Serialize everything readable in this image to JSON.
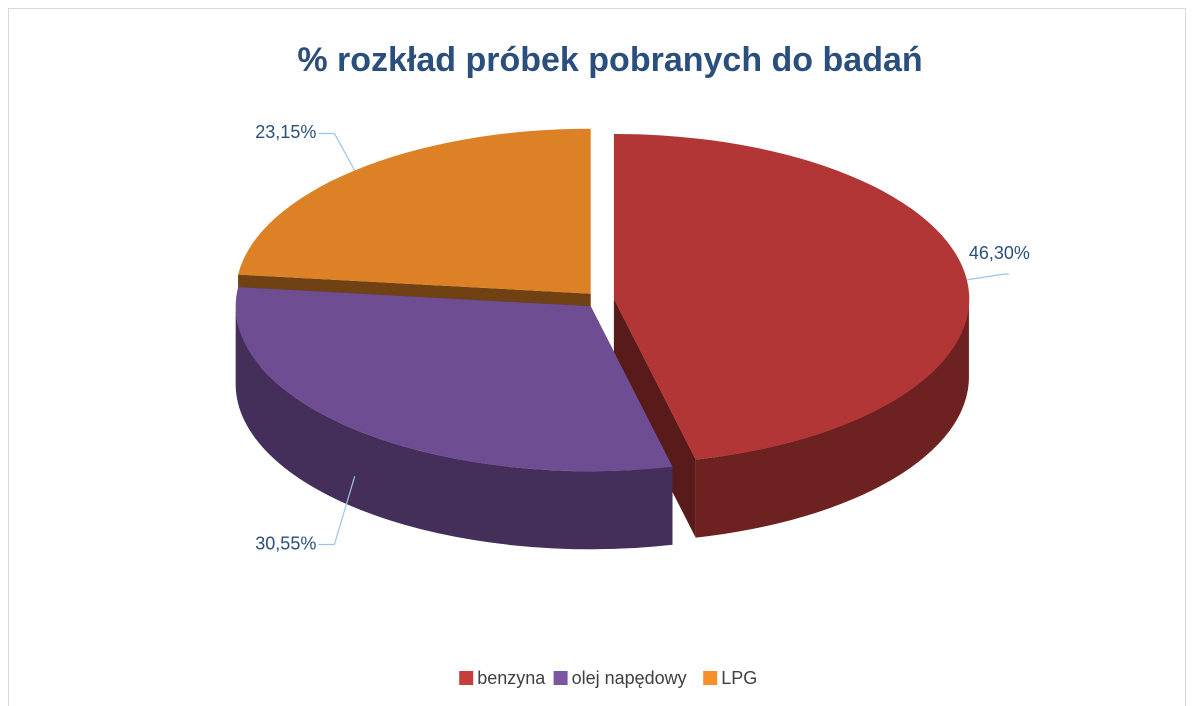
{
  "chart_data": {
    "type": "pie",
    "title": "% rozkład próbek pobranych do badań",
    "categories": [
      "benzyna",
      "olej napędowy",
      "LPG"
    ],
    "values": [
      46.3,
      30.55,
      23.15
    ],
    "value_labels": [
      "46,30%",
      "30,55%",
      "23,15%"
    ],
    "colors": [
      "#c63d3b",
      "#7b56a3",
      "#f5902a"
    ],
    "legend": "bottom"
  }
}
